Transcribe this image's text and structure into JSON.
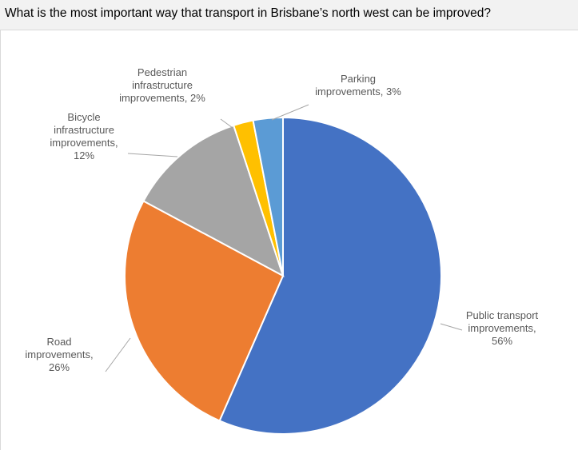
{
  "header": {
    "question": "What is the most important way that transport in Brisbane’s north west can be improved?"
  },
  "chart_data": {
    "type": "pie",
    "title": "",
    "start_angle_deg": 0,
    "direction": "clockwise",
    "slices": [
      {
        "label_lines": [
          "Public transport",
          "improvements,",
          "56%"
        ],
        "name": "Public transport improvements",
        "value": 56,
        "color": "#4472c4"
      },
      {
        "label_lines": [
          "Road",
          "improvements,",
          "26%"
        ],
        "name": "Road improvements",
        "value": 26,
        "color": "#ed7d31"
      },
      {
        "label_lines": [
          "Bicycle",
          "infrastructure",
          "improvements,",
          "12%"
        ],
        "name": "Bicycle infrastructure improvements",
        "value": 12,
        "color": "#a5a5a5"
      },
      {
        "label_lines": [
          "Pedestrian",
          "infrastructure",
          "improvements, 2%"
        ],
        "name": "Pedestrian infrastructure improvements",
        "value": 2,
        "color": "#ffc000"
      },
      {
        "label_lines": [
          "Parking",
          "improvements, 3%"
        ],
        "name": "Parking improvements",
        "value": 3,
        "color": "#5b9bd5"
      }
    ],
    "legend": "none",
    "data_labels": "outside with leader lines"
  }
}
